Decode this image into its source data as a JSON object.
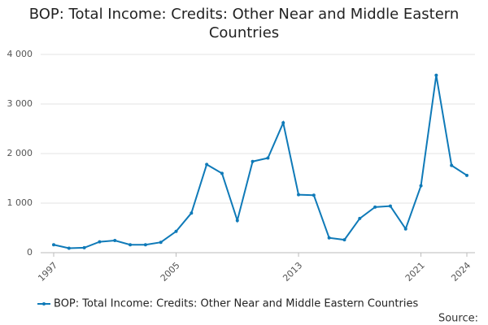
{
  "chart_data": {
    "type": "line",
    "title": "BOP: Total Income: Credits: Other Near and Middle Eastern Countries",
    "x": [
      1997,
      1998,
      1999,
      2000,
      2001,
      2002,
      2003,
      2004,
      2005,
      2006,
      2007,
      2008,
      2009,
      2010,
      2011,
      2012,
      2013,
      2014,
      2015,
      2016,
      2017,
      2018,
      2019,
      2020,
      2021,
      2022,
      2023,
      2024
    ],
    "series": [
      {
        "name": "BOP: Total Income: Credits: Other Near and Middle Eastern Countries",
        "color": "#0f7ab8",
        "values": [
          160,
          90,
          100,
          220,
          245,
          160,
          160,
          210,
          430,
          800,
          1780,
          1600,
          650,
          1840,
          1910,
          2620,
          1170,
          1160,
          300,
          260,
          690,
          920,
          940,
          480,
          1350,
          3580,
          1760,
          1560
        ]
      }
    ],
    "xlim": [
      1997,
      2024
    ],
    "xticks": [
      1997,
      2005,
      2013,
      2021,
      2024
    ],
    "ylim": [
      0,
      4000
    ],
    "yticks": [
      0,
      {
        "value": 1000,
        "label": "1 000"
      },
      {
        "value": 2000,
        "label": "2 000"
      },
      {
        "value": 3000,
        "label": "3 000"
      },
      {
        "value": 4000,
        "label": "4 000"
      }
    ],
    "grid": true,
    "legend": "bottom",
    "source_label": "Source:"
  }
}
